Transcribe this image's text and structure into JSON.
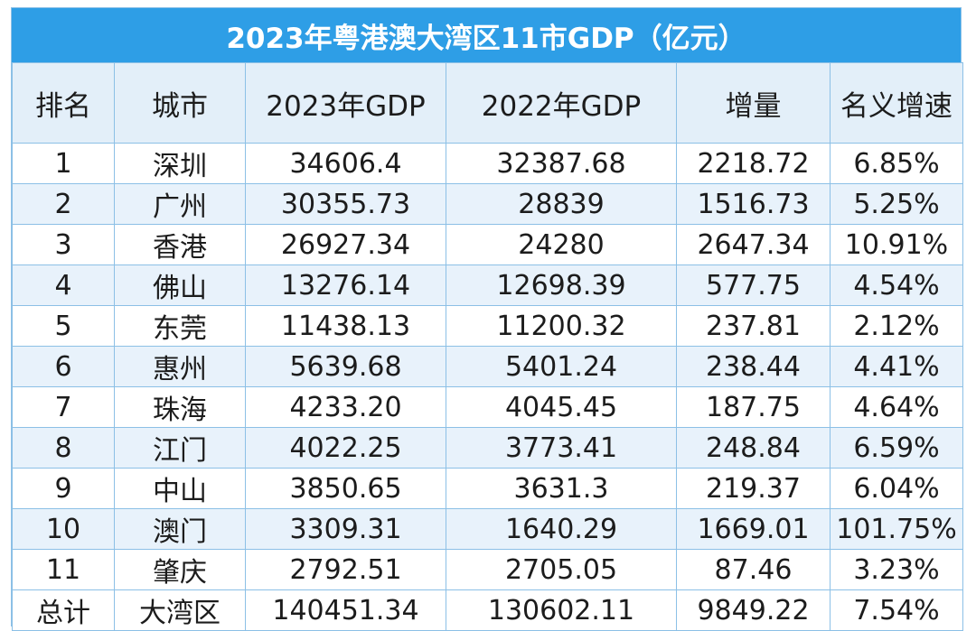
{
  "title": "2023年粤港澳大湾区11市GDP（亿元）",
  "columns": [
    "排名",
    "城市",
    "2023年GDP",
    "2022年GDP",
    "增量",
    "名义增速"
  ],
  "rows": [
    [
      "1",
      "深圳",
      "34606.4",
      "32387.68",
      "2218.72",
      "6.85%"
    ],
    [
      "2",
      "广州",
      "30355.73",
      "28839",
      "1516.73",
      "5.25%"
    ],
    [
      "3",
      "香港",
      "26927.34",
      "24280",
      "2647.34",
      "10.91%"
    ],
    [
      "4",
      "佛山",
      "13276.14",
      "12698.39",
      "577.75",
      "4.54%"
    ],
    [
      "5",
      "东莞",
      "11438.13",
      "11200.32",
      "237.81",
      "2.12%"
    ],
    [
      "6",
      "惠州",
      "5639.68",
      "5401.24",
      "238.44",
      "4.41%"
    ],
    [
      "7",
      "珠海",
      "4233.20",
      "4045.45",
      "187.75",
      "4.64%"
    ],
    [
      "8",
      "江门",
      "4022.25",
      "3773.41",
      "248.84",
      "6.59%"
    ],
    [
      "9",
      "中山",
      "3850.65",
      "3631.3",
      "219.37",
      "6.04%"
    ],
    [
      "10",
      "澳门",
      "3309.31",
      "1640.29",
      "1669.01",
      "101.75%"
    ],
    [
      "11",
      "肇庆",
      "2792.51",
      "2705.05",
      "87.46",
      "3.23%"
    ],
    [
      "总计",
      "大湾区",
      "140451.34",
      "130602.11",
      "9849.22",
      "7.54%"
    ]
  ],
  "colors": {
    "title_bg": "#2e9ee6",
    "header_bg": "#e3eff9",
    "stripe_bg": "#e8f2fb",
    "border": "#8cc0e6"
  }
}
